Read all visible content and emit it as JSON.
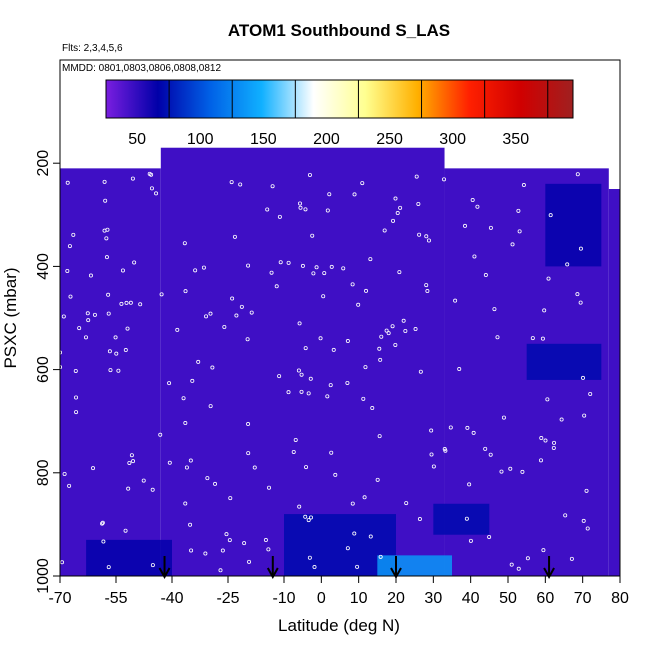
{
  "chart_data": {
    "type": "heatmap",
    "title": "ATOM1 Southbound S_LAS",
    "annotations": [
      "Flts: 2,3,4,5,6",
      "MMDD: 0801,0803,0806,0808,0812"
    ],
    "xlabel": "Latitude (deg N)",
    "ylabel": "PSXC (mbar)",
    "xlim": [
      -70,
      80
    ],
    "ylim": [
      1000,
      0
    ],
    "x_ticks": [
      -70,
      -55,
      -40,
      -25,
      -10,
      0,
      10,
      20,
      30,
      40,
      50,
      60,
      70,
      80
    ],
    "x_tick_labels": [
      "-70",
      "-55",
      "-40",
      "-25",
      "-10",
      "0",
      "10",
      "20",
      "30",
      "40",
      "50",
      "60",
      "70",
      "80"
    ],
    "y_ticks": [
      200,
      400,
      600,
      800,
      1000
    ],
    "y_tick_labels": [
      "200",
      "400",
      "600",
      "800",
      "1000"
    ],
    "colorbar": {
      "range": [
        0,
        370
      ],
      "ticks": [
        50,
        100,
        150,
        200,
        250,
        300,
        350
      ],
      "tick_labels": [
        "50",
        "100",
        "150",
        "200",
        "250",
        "300",
        "350"
      ],
      "colors": [
        "#7a1ee0",
        "#0000a8",
        "#0060e6",
        "#10b0ff",
        "#ffffff",
        "#ffff90",
        "#ffb000",
        "#ff2000",
        "#d00000",
        "#a02020"
      ]
    },
    "coverage": [
      {
        "lat_range": [
          -70,
          -43
        ],
        "p_range": [
          210,
          1000
        ]
      },
      {
        "lat_range": [
          -43,
          33
        ],
        "p_range": [
          170,
          1000
        ]
      },
      {
        "lat_range": [
          33,
          77
        ],
        "p_range": [
          210,
          1000
        ]
      },
      {
        "lat_range": [
          77,
          80
        ],
        "p_range": [
          250,
          1000
        ]
      }
    ],
    "background_value": 20,
    "high_regions": [
      {
        "lat_range": [
          -10,
          20
        ],
        "p_range": [
          880,
          1000
        ],
        "value": 45
      },
      {
        "lat_range": [
          15,
          35
        ],
        "p_range": [
          960,
          1000
        ],
        "value": 110
      },
      {
        "lat_range": [
          30,
          45
        ],
        "p_range": [
          860,
          920
        ],
        "value": 45
      },
      {
        "lat_range": [
          60,
          75
        ],
        "p_range": [
          240,
          400
        ],
        "value": 40
      },
      {
        "lat_range": [
          55,
          75
        ],
        "p_range": [
          550,
          620
        ],
        "value": 45
      },
      {
        "lat_range": [
          -63,
          -40
        ],
        "p_range": [
          930,
          1000
        ],
        "value": 40
      }
    ],
    "flight_markers_lat": [
      -42,
      -13,
      20,
      61
    ]
  }
}
